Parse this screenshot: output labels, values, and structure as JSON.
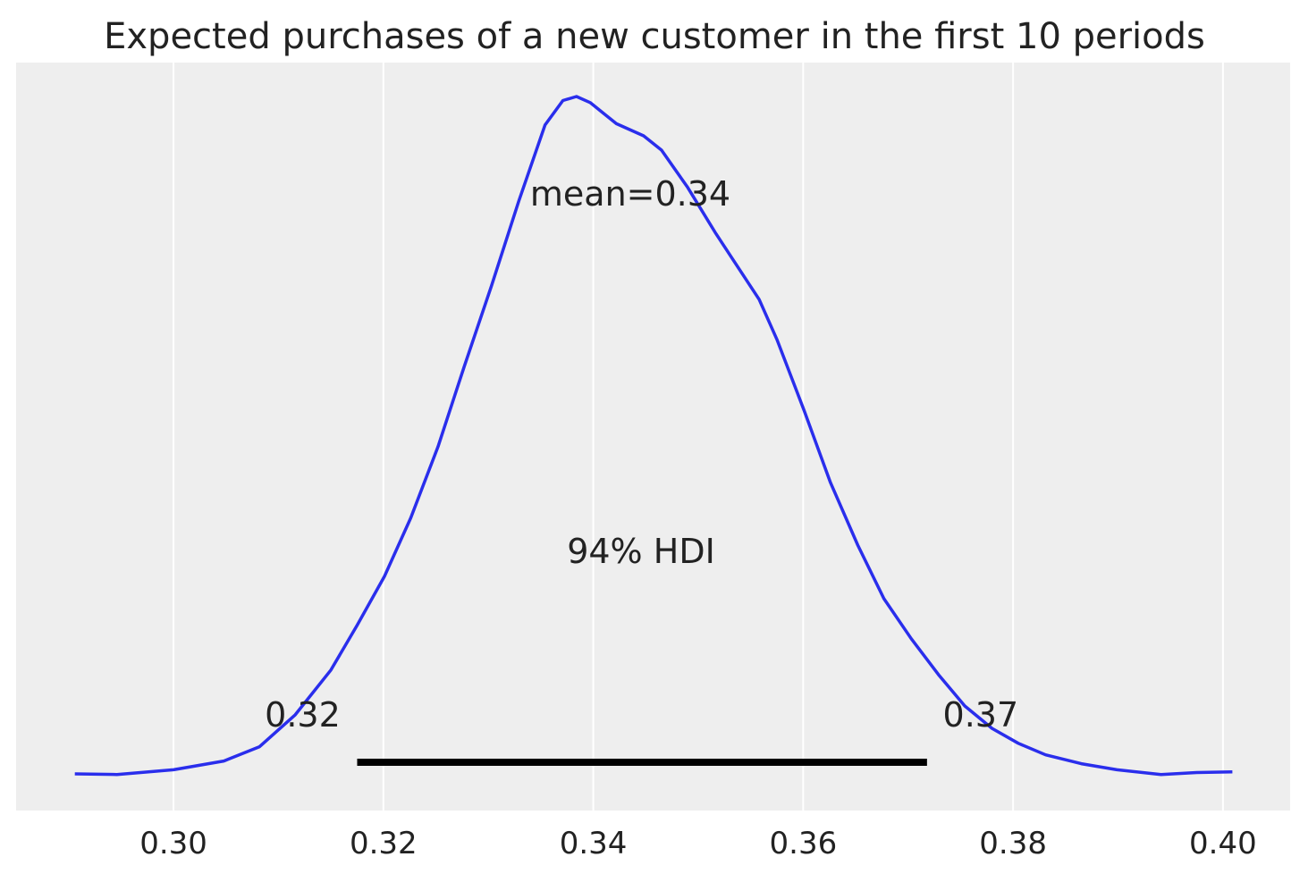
{
  "chart_data": {
    "type": "line",
    "title": "Expected purchases of a new customer in the first 10 periods",
    "xlabel": "",
    "ylabel": "",
    "xlim": [
      0.285,
      0.4064
    ],
    "ylim": [
      -0.053,
      1.049
    ],
    "xticks": [
      0.3,
      0.32,
      0.34,
      0.36,
      0.38,
      0.4
    ],
    "xtick_labels": [
      "0.30",
      "0.32",
      "0.34",
      "0.36",
      "0.38",
      "0.40"
    ],
    "grid": "vertical",
    "background": "#eeeeee",
    "series": [
      {
        "color": "#2a2eec",
        "x": [
          0.2906,
          0.2946,
          0.3,
          0.3048,
          0.3082,
          0.3116,
          0.315,
          0.3175,
          0.3201,
          0.3226,
          0.3252,
          0.3277,
          0.3303,
          0.3329,
          0.3354,
          0.3371,
          0.3384,
          0.3397,
          0.3422,
          0.3448,
          0.3465,
          0.349,
          0.3516,
          0.3533,
          0.3558,
          0.3575,
          0.3601,
          0.3626,
          0.3652,
          0.3677,
          0.3703,
          0.3729,
          0.3754,
          0.378,
          0.3805,
          0.3831,
          0.3865,
          0.3899,
          0.3941,
          0.3975,
          0.4009
        ],
        "y": [
          0.001,
          0.0,
          0.007,
          0.02,
          0.041,
          0.088,
          0.154,
          0.22,
          0.292,
          0.378,
          0.483,
          0.601,
          0.72,
          0.845,
          0.957,
          0.993,
          0.999,
          0.99,
          0.959,
          0.941,
          0.92,
          0.865,
          0.799,
          0.759,
          0.7,
          0.641,
          0.536,
          0.43,
          0.338,
          0.259,
          0.2,
          0.147,
          0.101,
          0.068,
          0.046,
          0.029,
          0.016,
          0.007,
          0.0,
          0.003,
          0.004
        ]
      }
    ],
    "annotations": {
      "mean_label": "mean=0.34",
      "hdi_label": "94% HDI",
      "hdi_low": 0.3175,
      "hdi_high": 0.3718,
      "hdi_low_label": "0.32",
      "hdi_high_label": "0.37",
      "hdi_color": "#000000"
    }
  }
}
